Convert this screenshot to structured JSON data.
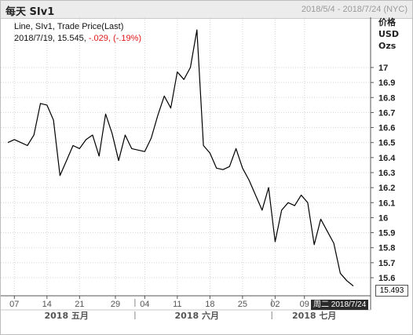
{
  "header": {
    "title": "每天 SIv1",
    "date_range": "2018/5/4 - 2018/7/24 (NYC)"
  },
  "legend": {
    "line1": "Line, SIv1, Trade Price(Last)",
    "date": "2018/7/19,",
    "value": "15.545,",
    "change": "-.029,",
    "pct": "(-.19%)"
  },
  "axis": {
    "y_header": [
      "价格",
      "USD",
      "Ozs"
    ]
  },
  "cursor": {
    "date_label": "周二 2018/7/24",
    "price_label": "15.493"
  },
  "colors": {
    "line": "#000000",
    "negative": "#e01818",
    "grid": "#d4d4d4"
  },
  "chart_data": {
    "type": "line",
    "series": [
      {
        "name": "SIv1",
        "values": [
          16.5,
          16.52,
          16.5,
          16.48,
          16.55,
          16.76,
          16.75,
          16.65,
          16.28,
          16.38,
          16.48,
          16.46,
          16.52,
          16.55,
          16.41,
          16.69,
          16.56,
          16.38,
          16.55,
          16.46,
          16.45,
          16.44,
          16.53,
          16.68,
          16.81,
          16.73,
          16.97,
          16.92,
          17.0,
          17.25,
          16.48,
          16.43,
          16.33,
          16.32,
          16.34,
          16.46,
          16.33,
          16.25,
          16.15,
          16.05,
          16.2,
          15.84,
          16.05,
          16.1,
          16.08,
          16.15,
          16.1,
          15.82,
          15.99,
          15.91,
          15.83,
          15.63,
          15.58,
          15.545
        ]
      }
    ],
    "dates": [
      "2018-05-04",
      "2018-05-07",
      "2018-05-08",
      "2018-05-09",
      "2018-05-10",
      "2018-05-11",
      "2018-05-14",
      "2018-05-15",
      "2018-05-16",
      "2018-05-17",
      "2018-05-18",
      "2018-05-21",
      "2018-05-22",
      "2018-05-23",
      "2018-05-24",
      "2018-05-25",
      "2018-05-28",
      "2018-05-29",
      "2018-05-30",
      "2018-05-31",
      "2018-06-01",
      "2018-06-04",
      "2018-06-05",
      "2018-06-06",
      "2018-06-07",
      "2018-06-08",
      "2018-06-11",
      "2018-06-12",
      "2018-06-13",
      "2018-06-14",
      "2018-06-15",
      "2018-06-18",
      "2018-06-19",
      "2018-06-20",
      "2018-06-21",
      "2018-06-22",
      "2018-06-25",
      "2018-06-26",
      "2018-06-27",
      "2018-06-28",
      "2018-06-29",
      "2018-07-02",
      "2018-07-03",
      "2018-07-04",
      "2018-07-05",
      "2018-07-06",
      "2018-07-09",
      "2018-07-10",
      "2018-07-11",
      "2018-07-12",
      "2018-07-13",
      "2018-07-16",
      "2018-07-17",
      "2018-07-19"
    ],
    "ylim": [
      15.5,
      17.3
    ],
    "y_ticks": [
      "17",
      "16.9",
      "16.8",
      "16.7",
      "16.6",
      "16.5",
      "16.4",
      "16.3",
      "16.2",
      "16.1",
      "16",
      "15.9",
      "15.8",
      "15.7",
      "15.6"
    ],
    "y_tick_values": [
      17,
      16.9,
      16.8,
      16.7,
      16.6,
      16.5,
      16.4,
      16.3,
      16.2,
      16.1,
      16,
      15.9,
      15.8,
      15.7,
      15.6
    ],
    "x_ticks": [
      {
        "label": "07",
        "index": 1
      },
      {
        "label": "14",
        "index": 6
      },
      {
        "label": "21",
        "index": 11
      },
      {
        "label": "29",
        "index": 16.5
      },
      {
        "label": "04",
        "index": 21
      },
      {
        "label": "11",
        "index": 26
      },
      {
        "label": "18",
        "index": 31
      },
      {
        "label": "25",
        "index": 36
      },
      {
        "label": "02",
        "index": 41
      },
      {
        "label": "09",
        "index": 45.5
      }
    ],
    "months": [
      {
        "label": "2018 五月",
        "center_index": 9
      },
      {
        "label": "2018 六月",
        "center_index": 29
      },
      {
        "label": "2018 七月",
        "center_index": 47
      }
    ],
    "month_separators": [
      19.5,
      40.5
    ],
    "grid": true,
    "legend": "top-left"
  }
}
